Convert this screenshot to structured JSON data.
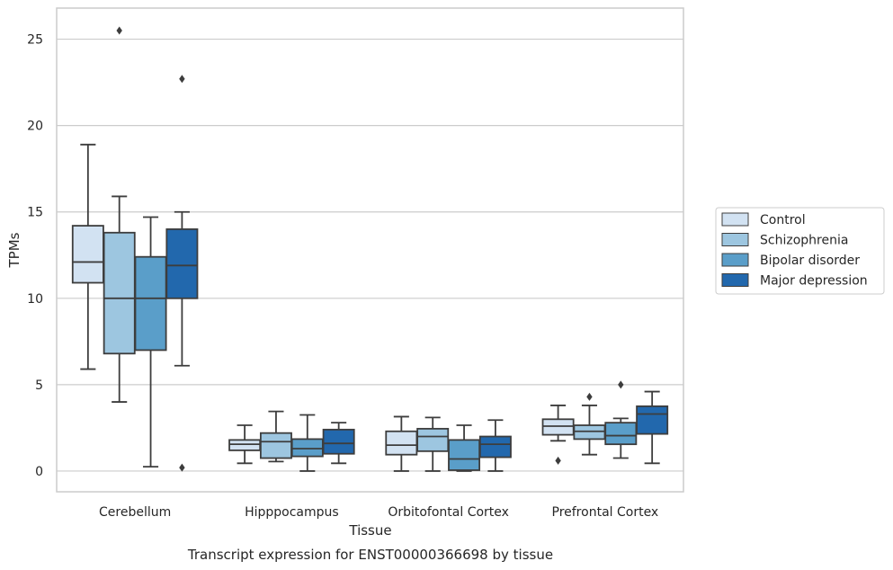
{
  "caption": "Transcript expression for ENST00000366698 by tissue",
  "chart_data": {
    "type": "box",
    "xlabel": "Tissue",
    "ylabel": "TPMs",
    "ylim": [
      -1.2,
      26.8
    ],
    "yticks": [
      0,
      5,
      10,
      15,
      20,
      25
    ],
    "grid": "horizontal",
    "legend_position": "right",
    "categories": [
      "Cerebellum",
      "Hipppocampus",
      "Orbitofontal Cortex",
      "Prefrontal Cortex"
    ],
    "series": [
      {
        "name": "Control",
        "color": "#d2e2f2",
        "boxes": [
          {
            "whisker_low": 5.9,
            "q1": 10.9,
            "median": 12.1,
            "q3": 14.2,
            "whisker_high": 18.9,
            "outliers": []
          },
          {
            "whisker_low": 0.45,
            "q1": 1.2,
            "median": 1.55,
            "q3": 1.8,
            "whisker_high": 2.65,
            "outliers": []
          },
          {
            "whisker_low": 0.0,
            "q1": 0.95,
            "median": 1.5,
            "q3": 2.3,
            "whisker_high": 3.15,
            "outliers": []
          },
          {
            "whisker_low": 1.75,
            "q1": 2.1,
            "median": 2.6,
            "q3": 3.0,
            "whisker_high": 3.8,
            "outliers": [
              0.6
            ]
          }
        ]
      },
      {
        "name": "Schizophrenia",
        "color": "#9dc6e0",
        "boxes": [
          {
            "whisker_low": 4.0,
            "q1": 6.8,
            "median": 10.0,
            "q3": 13.8,
            "whisker_high": 15.9,
            "outliers": [
              25.5
            ]
          },
          {
            "whisker_low": 0.55,
            "q1": 0.75,
            "median": 1.7,
            "q3": 2.2,
            "whisker_high": 3.45,
            "outliers": []
          },
          {
            "whisker_low": 0.0,
            "q1": 1.15,
            "median": 2.0,
            "q3": 2.45,
            "whisker_high": 3.1,
            "outliers": []
          },
          {
            "whisker_low": 0.95,
            "q1": 1.85,
            "median": 2.3,
            "q3": 2.65,
            "whisker_high": 3.8,
            "outliers": [
              4.3
            ]
          }
        ]
      },
      {
        "name": "Bipolar disorder",
        "color": "#5a9ec9",
        "boxes": [
          {
            "whisker_low": 0.25,
            "q1": 7.0,
            "median": 10.0,
            "q3": 12.4,
            "whisker_high": 14.7,
            "outliers": []
          },
          {
            "whisker_low": 0.0,
            "q1": 0.85,
            "median": 1.3,
            "q3": 1.85,
            "whisker_high": 3.25,
            "outliers": []
          },
          {
            "whisker_low": 0.0,
            "q1": 0.05,
            "median": 0.7,
            "q3": 1.8,
            "whisker_high": 2.65,
            "outliers": []
          },
          {
            "whisker_low": 0.75,
            "q1": 1.55,
            "median": 2.05,
            "q3": 2.8,
            "whisker_high": 3.05,
            "outliers": [
              5.0
            ]
          }
        ]
      },
      {
        "name": "Major depression",
        "color": "#2268ad",
        "boxes": [
          {
            "whisker_low": 6.1,
            "q1": 10.0,
            "median": 11.9,
            "q3": 14.0,
            "whisker_high": 15.0,
            "outliers": [
              0.2,
              22.7
            ]
          },
          {
            "whisker_low": 0.45,
            "q1": 1.0,
            "median": 1.6,
            "q3": 2.4,
            "whisker_high": 2.8,
            "outliers": []
          },
          {
            "whisker_low": 0.0,
            "q1": 0.8,
            "median": 1.55,
            "q3": 2.0,
            "whisker_high": 2.95,
            "outliers": []
          },
          {
            "whisker_low": 0.45,
            "q1": 2.15,
            "median": 3.3,
            "q3": 3.75,
            "whisker_high": 4.6,
            "outliers": []
          }
        ]
      }
    ]
  }
}
